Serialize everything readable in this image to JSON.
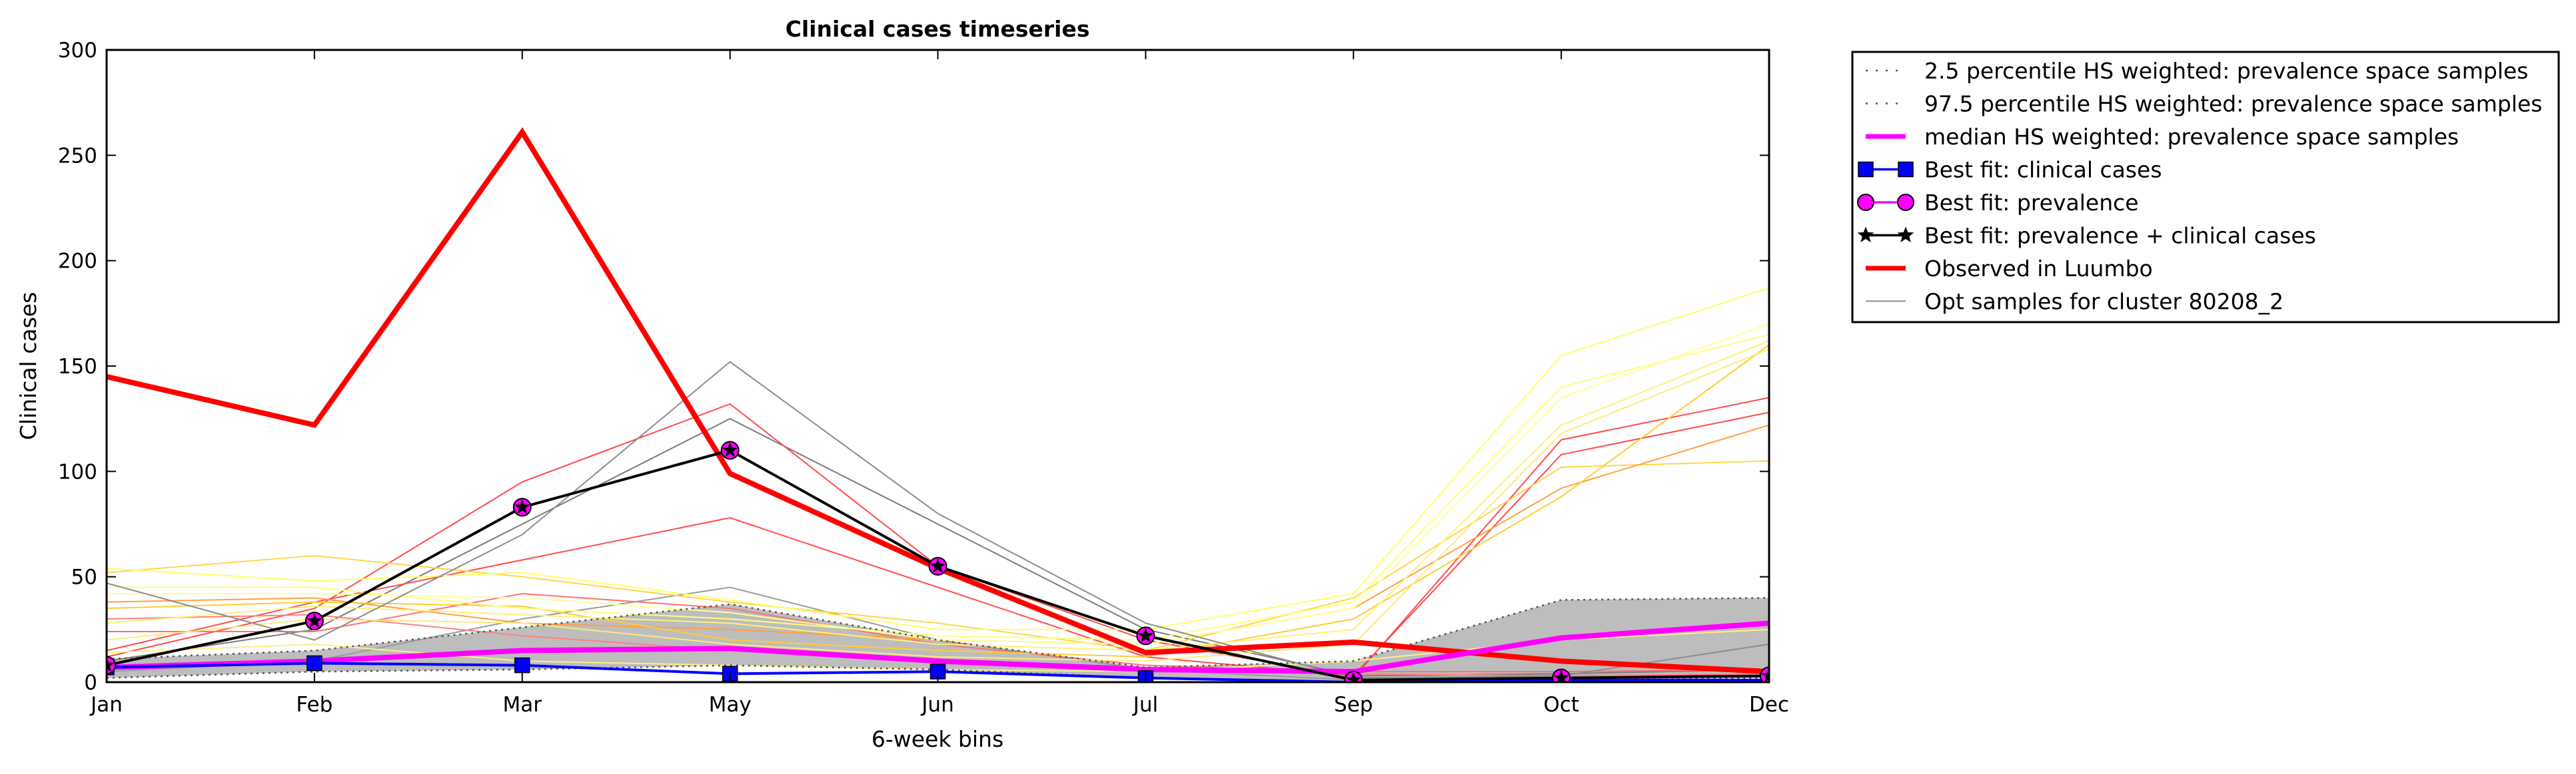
{
  "chart_data": {
    "type": "line",
    "title": "Clinical cases timeseries",
    "xlabel": "6-week bins",
    "ylabel": "Clinical cases",
    "categories": [
      "Jan",
      "Feb",
      "Mar",
      "May",
      "Jun",
      "Jul",
      "Sep",
      "Oct",
      "Dec"
    ],
    "ylim": [
      0,
      300
    ],
    "yticks": [
      "0",
      "50",
      "100",
      "150",
      "200",
      "250",
      "300"
    ],
    "grid": false,
    "legend_position": "outside-top-right",
    "band": {
      "lower": [
        2,
        5,
        6,
        8,
        6,
        2,
        0,
        1,
        2
      ],
      "upper": [
        11,
        15,
        26,
        37,
        20,
        7,
        10,
        39,
        40
      ],
      "color": "#bdbdbd"
    },
    "series": [
      {
        "name": "2.5 percentile HS weighted: prevalence space samples",
        "color": "#555555",
        "style": "dotted",
        "values": [
          2,
          5,
          6,
          8,
          6,
          2,
          0,
          1,
          2
        ]
      },
      {
        "name": "97.5 percentile HS weighted: prevalence space samples",
        "color": "#555555",
        "style": "dotted",
        "values": [
          11,
          15,
          26,
          37,
          20,
          7,
          10,
          39,
          40
        ]
      },
      {
        "name": "median HS weighted: prevalence space samples",
        "color": "#ff00ff",
        "style": "thick",
        "values": [
          7,
          10,
          15,
          16,
          10,
          6,
          5,
          21,
          28
        ]
      },
      {
        "name": "Best fit: clinical cases",
        "color": "#0000ff",
        "style": "square",
        "values": [
          7,
          9,
          8,
          4,
          5,
          2,
          0,
          1,
          1
        ]
      },
      {
        "name": "Best fit: prevalence",
        "color": "#ff00ff",
        "style": "circle",
        "values": [
          8,
          29,
          83,
          110,
          55,
          22,
          1,
          2,
          3
        ]
      },
      {
        "name": "Best fit: prevalence + clinical cases",
        "color": "#000000",
        "style": "star",
        "values": [
          8,
          29,
          83,
          110,
          55,
          22,
          1,
          2,
          3
        ]
      },
      {
        "name": "Observed in Luumbo",
        "color": "#ff0000",
        "style": "observed",
        "values": [
          145,
          122,
          261,
          99,
          54,
          14,
          19,
          10,
          5
        ]
      },
      {
        "name": "Opt samples for cluster 80208_2",
        "color": "#8c8c8c",
        "style": "thin",
        "values": [
          47,
          20,
          70,
          152,
          80,
          28,
          2,
          3,
          18
        ]
      }
    ],
    "sample_lines": [
      {
        "color": "#7a7a7a",
        "values": [
          10,
          25,
          75,
          125,
          75,
          25,
          3,
          4,
          6
        ]
      },
      {
        "color": "#9a9a9a",
        "values": [
          5,
          10,
          30,
          45,
          20,
          6,
          1,
          2,
          3
        ]
      },
      {
        "color": "#ff4b4b",
        "values": [
          12,
          35,
          95,
          132,
          55,
          20,
          2,
          115,
          135
        ]
      },
      {
        "color": "#ff4b4b",
        "values": [
          15,
          38,
          58,
          78,
          45,
          12,
          3,
          108,
          128
        ]
      },
      {
        "color": "#ff7070",
        "values": [
          24,
          24,
          42,
          35,
          18,
          8,
          5,
          5,
          6
        ]
      },
      {
        "color": "#ff8080",
        "values": [
          30,
          32,
          22,
          15,
          10,
          6,
          4,
          3,
          4
        ]
      },
      {
        "color": "#ffd54a",
        "values": [
          52,
          60,
          50,
          38,
          28,
          15,
          40,
          102,
          105
        ]
      },
      {
        "color": "#ffa040",
        "values": [
          38,
          40,
          28,
          25,
          20,
          18,
          35,
          92,
          122
        ]
      },
      {
        "color": "#ffcc33",
        "values": [
          35,
          38,
          36,
          20,
          15,
          12,
          30,
          88,
          160
        ]
      },
      {
        "color": "#ffff66",
        "values": [
          54,
          48,
          52,
          39,
          25,
          25,
          42,
          155,
          187
        ]
      },
      {
        "color": "#ffff80",
        "values": [
          45,
          45,
          35,
          30,
          22,
          20,
          38,
          140,
          165
        ]
      },
      {
        "color": "#ffff99",
        "values": [
          42,
          42,
          40,
          33,
          20,
          18,
          35,
          135,
          170
        ]
      },
      {
        "color": "#fff176",
        "values": [
          28,
          36,
          32,
          28,
          18,
          15,
          25,
          122,
          162
        ]
      },
      {
        "color": "#ffe97f",
        "values": [
          20,
          30,
          28,
          18,
          12,
          10,
          18,
          118,
          158
        ]
      },
      {
        "color": "#ffee88",
        "values": [
          14,
          18,
          10,
          8,
          6,
          5,
          10,
          20,
          25
        ]
      }
    ]
  }
}
